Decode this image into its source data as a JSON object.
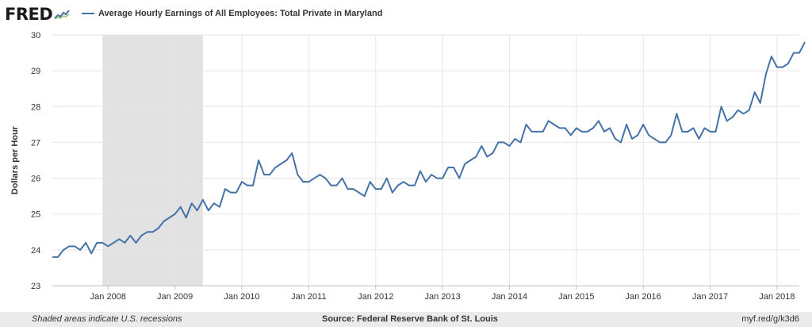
{
  "logo": {
    "text": "FRED"
  },
  "footer": {
    "note": "Shaded areas indicate U.S. recessions",
    "source": "Source: Federal Reserve Bank of St. Louis",
    "link": "myf.red/g/k3d6"
  },
  "colors": {
    "line": "#4572a7",
    "recession": "#e2e2e2",
    "plot_bg": "#ffffff",
    "grid": "#e6e6e6",
    "axis": "#333333"
  },
  "chart_data": {
    "type": "line",
    "title": "",
    "ylabel": "Dollars per Hour",
    "xlabel": "",
    "ylim": [
      23,
      30
    ],
    "yticks": [
      23,
      24,
      25,
      26,
      27,
      28,
      29,
      30
    ],
    "xlim": [
      "2007-03",
      "2018-05"
    ],
    "xtick_labels": [
      "Jan 2008",
      "Jan 2009",
      "Jan 2010",
      "Jan 2011",
      "Jan 2012",
      "Jan 2013",
      "Jan 2014",
      "Jan 2015",
      "Jan 2016",
      "Jan 2017",
      "Jan 2018"
    ],
    "xtick_dates": [
      "2008-01",
      "2009-01",
      "2010-01",
      "2011-01",
      "2012-01",
      "2013-01",
      "2014-01",
      "2015-01",
      "2016-01",
      "2017-01",
      "2018-01"
    ],
    "grid": true,
    "recessions": [
      {
        "start": "2007-12",
        "end": "2009-06"
      }
    ],
    "series": [
      {
        "name": "Average Hourly Earnings of All Employees: Total Private in Maryland",
        "start": "2007-03",
        "frequency": "monthly",
        "values": [
          23.8,
          23.8,
          24.0,
          24.1,
          24.1,
          24.0,
          24.2,
          23.9,
          24.2,
          24.2,
          24.1,
          24.2,
          24.3,
          24.2,
          24.4,
          24.2,
          24.4,
          24.5,
          24.5,
          24.6,
          24.8,
          24.9,
          25.0,
          25.2,
          24.9,
          25.3,
          25.1,
          25.4,
          25.1,
          25.3,
          25.2,
          25.7,
          25.6,
          25.6,
          25.9,
          25.8,
          25.8,
          26.5,
          26.1,
          26.1,
          26.3,
          26.4,
          26.5,
          26.7,
          26.1,
          25.9,
          25.9,
          26.0,
          26.1,
          26.0,
          25.8,
          25.8,
          26.0,
          25.7,
          25.7,
          25.6,
          25.5,
          25.9,
          25.7,
          25.7,
          26.0,
          25.6,
          25.8,
          25.9,
          25.8,
          25.8,
          26.2,
          25.9,
          26.1,
          26.0,
          26.0,
          26.3,
          26.3,
          26.0,
          26.4,
          26.5,
          26.6,
          26.9,
          26.6,
          26.7,
          27.0,
          27.0,
          26.9,
          27.1,
          27.0,
          27.5,
          27.3,
          27.3,
          27.3,
          27.6,
          27.5,
          27.4,
          27.4,
          27.2,
          27.4,
          27.3,
          27.3,
          27.4,
          27.6,
          27.3,
          27.4,
          27.1,
          27.0,
          27.5,
          27.1,
          27.2,
          27.5,
          27.2,
          27.1,
          27.0,
          27.0,
          27.2,
          27.8,
          27.3,
          27.3,
          27.4,
          27.1,
          27.4,
          27.3,
          27.3,
          28.0,
          27.6,
          27.7,
          27.9,
          27.8,
          27.9,
          28.4,
          28.1,
          28.9,
          29.4,
          29.1,
          29.1,
          29.2,
          29.5,
          29.5,
          29.8
        ]
      }
    ]
  }
}
